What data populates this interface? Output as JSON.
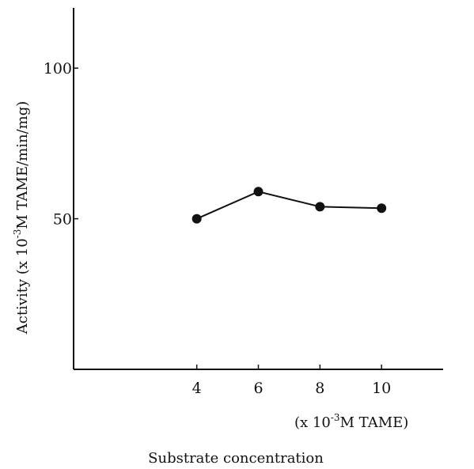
{
  "chart_data": {
    "type": "line",
    "title": "",
    "xlabel": "Substrate concentration",
    "x_unit_prefix": "(x 10",
    "x_unit_exp": "-3",
    "x_unit_suffix": "M TAME)",
    "ylabel_prefix": "Activity (x 10",
    "ylabel_exp": "-3",
    "ylabel_suffix": "M TAME/min/mg)",
    "xlim": [
      0,
      12
    ],
    "ylim": [
      0,
      120
    ],
    "xticks": [
      4,
      6,
      8,
      10
    ],
    "yticks": [
      50,
      100
    ],
    "x": [
      4,
      6,
      8,
      10
    ],
    "series": [
      {
        "values": [
          50,
          59,
          54,
          53.5
        ]
      }
    ],
    "grid": false,
    "legend": "none",
    "colors": {
      "line": "#111111",
      "marker": "#111111"
    }
  }
}
